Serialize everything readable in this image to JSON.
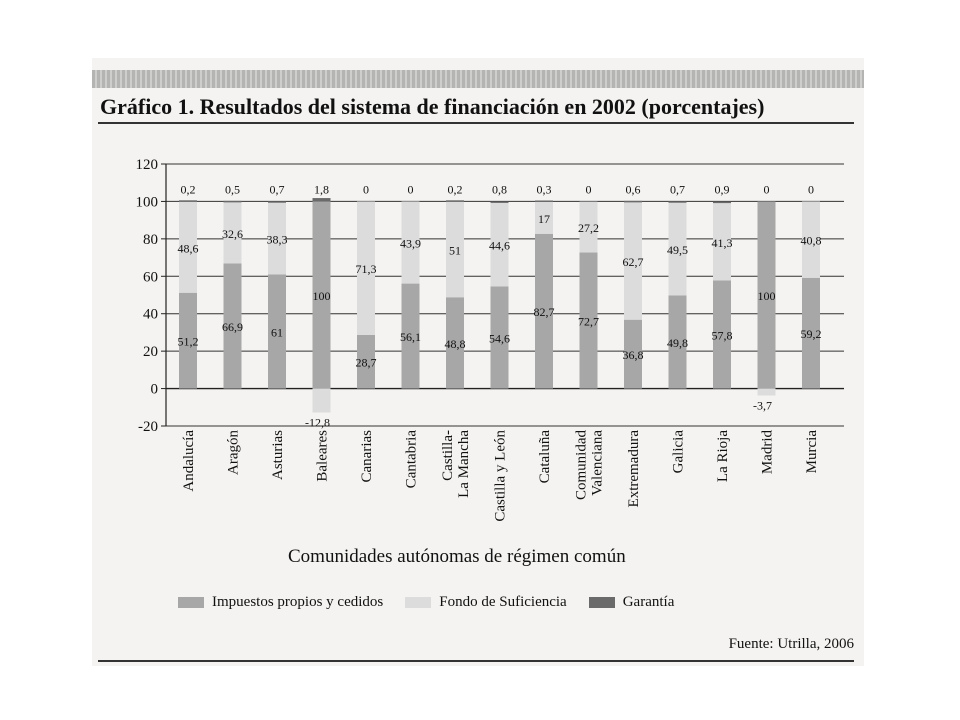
{
  "title": "Gráfico 1. Resultados del sistema de financiación en 2002 (porcentajes)",
  "source": "Fuente: Utrilla, 2006",
  "colors": {
    "impuestos": "#a7a7a7",
    "fondo": "#dcdcdc",
    "garantia": "#6a6a6a",
    "background": "#f4f3f1"
  },
  "chart_data": {
    "type": "bar",
    "stacked": true,
    "xlabel": "Comunidades autónomas de régimen común",
    "ylabel": "",
    "ylim": [
      -20,
      120
    ],
    "yticks": [
      -20,
      0,
      20,
      40,
      60,
      80,
      100,
      120
    ],
    "grid": true,
    "legend_position": "bottom",
    "categories": [
      [
        "Andalucía"
      ],
      [
        "Aragón"
      ],
      [
        "Asturias"
      ],
      [
        "Baleares"
      ],
      [
        "Canarias"
      ],
      [
        "Cantabria"
      ],
      [
        "Castilla-",
        "La Mancha"
      ],
      [
        "Castilla y León"
      ],
      [
        "Cataluña"
      ],
      [
        "Comunidad",
        "Valenciana"
      ],
      [
        "Extremadura"
      ],
      [
        "Galicia"
      ],
      [
        "La Rioja"
      ],
      [
        "Madrid"
      ],
      [
        "Murcia"
      ]
    ],
    "series": [
      {
        "name": "Impuestos propios y cedidos",
        "values": [
          51.2,
          66.9,
          61,
          100,
          28.7,
          56.1,
          48.8,
          54.6,
          82.7,
          72.7,
          36.8,
          49.8,
          57.8,
          100,
          59.2
        ],
        "labels": [
          "51,2",
          "66,9",
          "61",
          "100",
          "28,7",
          "56,1",
          "48,8",
          "54,6",
          "82,7",
          "72,7",
          "36,8",
          "49,8",
          "57,8",
          "100",
          "59,2"
        ]
      },
      {
        "name": "Fondo de Suficiencia",
        "values": [
          48.6,
          32.6,
          38.3,
          -12.8,
          71.3,
          43.9,
          51,
          44.6,
          17,
          27.2,
          62.7,
          49.5,
          41.3,
          -3.7,
          40.8
        ],
        "labels": [
          "48,6",
          "32,6",
          "38,3",
          "-12,8",
          "71,3",
          "43,9",
          "51",
          "44,6",
          "17",
          "27,2",
          "62,7",
          "49,5",
          "41,3",
          "-3,7",
          "40,8"
        ]
      },
      {
        "name": "Garantía",
        "values": [
          0.2,
          0.5,
          0.7,
          1.8,
          0,
          0,
          0.2,
          0.8,
          0.3,
          0,
          0.6,
          0.7,
          0.9,
          0,
          0
        ],
        "labels": [
          "0,2",
          "0,5",
          "0,7",
          "1,8",
          "0",
          "0",
          "0,2",
          "0,8",
          "0,3",
          "0",
          "0,6",
          "0,7",
          "0,9",
          "0",
          "0"
        ]
      }
    ]
  }
}
